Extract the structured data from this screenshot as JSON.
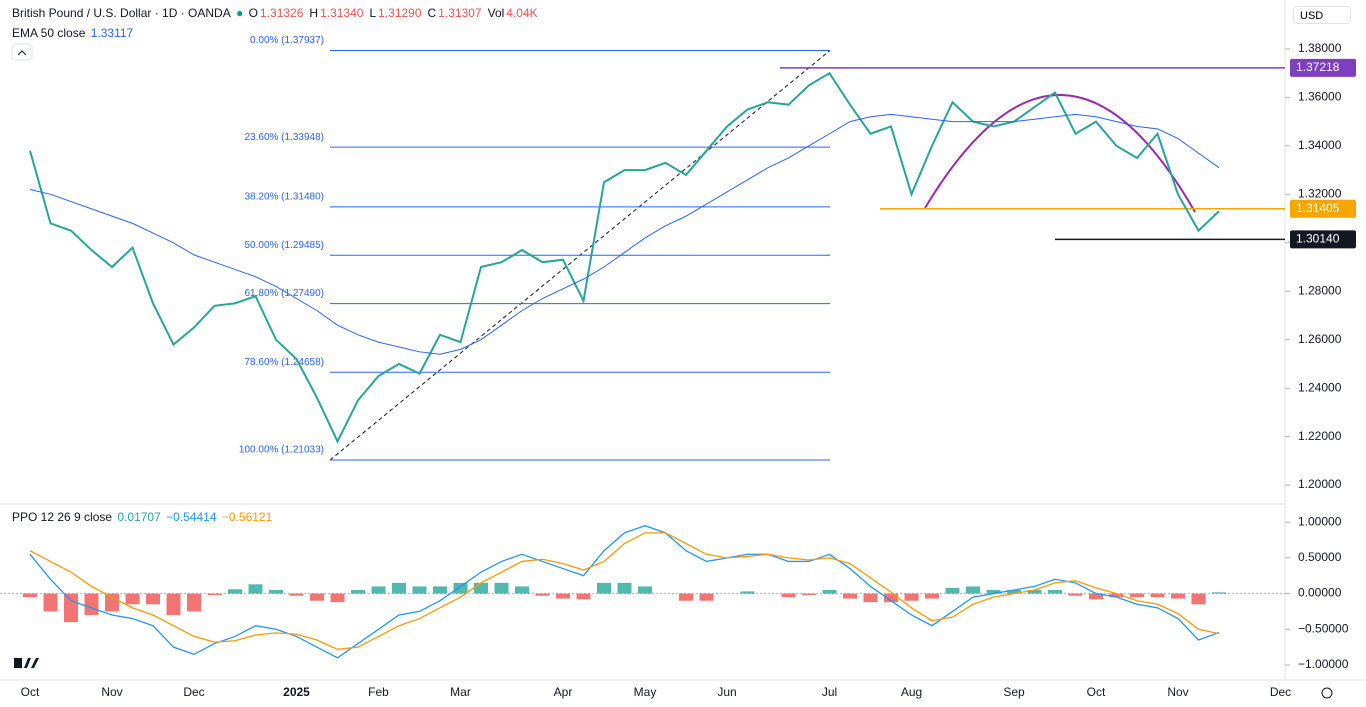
{
  "header": {
    "currency": "USD",
    "ohlc": [
      {
        "key": "O",
        "value": "1.31326"
      },
      {
        "key": "H",
        "value": "1.31340"
      },
      {
        "key": "L",
        "value": "1.31290"
      },
      {
        "key": "C",
        "value": "1.31307"
      },
      {
        "key": "Vol",
        "value": "4.04K"
      }
    ]
  },
  "chart_data": [
    {
      "type": "line",
      "title": "British Pound / U.S. Dollar · 1D · OANDA",
      "categories": [
        "Oct",
        null,
        null,
        null,
        "Nov",
        null,
        null,
        null,
        "Dec",
        null,
        null,
        null,
        null,
        "2025",
        null,
        null,
        null,
        "Feb",
        null,
        null,
        null,
        "Mar",
        null,
        null,
        null,
        null,
        "Apr",
        null,
        null,
        null,
        "May",
        null,
        null,
        null,
        "Jun",
        null,
        null,
        null,
        null,
        "Jul",
        null,
        null,
        null,
        "Aug",
        null,
        null,
        null,
        null,
        "Sep",
        null,
        null,
        null,
        "Oct",
        null,
        null,
        null,
        "Nov",
        null,
        null,
        null,
        null,
        "Dec"
      ],
      "series": [
        {
          "color": "#26a69a",
          "values": [
            1.338,
            1.308,
            1.305,
            1.297,
            1.29,
            1.298,
            1.275,
            1.258,
            1.265,
            1.274,
            1.275,
            1.278,
            1.26,
            1.252,
            1.236,
            1.218,
            1.235,
            1.245,
            1.25,
            1.246,
            1.262,
            1.259,
            1.29,
            1.292,
            1.297,
            1.292,
            1.293,
            1.276,
            1.325,
            1.33,
            1.33,
            1.333,
            1.328,
            1.338,
            1.348,
            1.355,
            1.358,
            1.357,
            1.365,
            1.37,
            1.357,
            1.345,
            1.348,
            1.32,
            1.34,
            1.358,
            1.35,
            1.348,
            1.35,
            1.356,
            1.362,
            1.345,
            1.35,
            1.34,
            1.335,
            1.345,
            1.32,
            1.305,
            1.313,
            null,
            null,
            null
          ]
        },
        {
          "name": "EMA 50 close",
          "legend_value": "1.33117",
          "color": "#2962ff",
          "values": [
            1.322,
            1.32,
            1.317,
            1.314,
            1.311,
            1.308,
            1.304,
            1.3,
            1.295,
            1.292,
            1.289,
            1.286,
            1.282,
            1.277,
            1.272,
            1.266,
            1.262,
            1.259,
            1.257,
            1.255,
            1.254,
            1.256,
            1.26,
            1.266,
            1.272,
            1.277,
            1.281,
            1.285,
            1.29,
            1.296,
            1.302,
            1.307,
            1.311,
            1.316,
            1.321,
            1.326,
            1.331,
            1.335,
            1.34,
            1.345,
            1.35,
            1.352,
            1.353,
            1.352,
            1.351,
            1.35,
            1.35,
            1.35,
            1.35,
            1.351,
            1.352,
            1.353,
            1.352,
            1.35,
            1.348,
            1.347,
            1.343,
            1.337,
            1.331,
            null,
            null,
            null
          ]
        }
      ],
      "fib_levels": [
        {
          "label": "0.00% (1.37937)",
          "value": 1.37937
        },
        {
          "label": "23.60% (1.33948)",
          "value": 1.33948
        },
        {
          "label": "38.20% (1.31480)",
          "value": 1.3148
        },
        {
          "label": "50.00% (1.29485)",
          "value": 1.29485
        },
        {
          "label": "61.80% (1.27490)",
          "value": 1.2749
        },
        {
          "label": "78.60% (1.24658)",
          "value": 1.24658
        },
        {
          "label": "100.00% (1.21033)",
          "value": 1.21033
        }
      ],
      "levels": [
        {
          "value": 1.37218,
          "label": "1.37218",
          "color": "#7e3fbf"
        },
        {
          "value": 1.31405,
          "label": "1.31405",
          "color": "#f7a600"
        },
        {
          "value": 1.3014,
          "label": "1.30140",
          "color": "#131722"
        }
      ],
      "ylim": [
        1.1926,
        1.4002
      ],
      "yticks": [
        {
          "value": 1.38,
          "label": "1.38000"
        },
        {
          "value": 1.36,
          "label": "1.36000"
        },
        {
          "value": 1.34,
          "label": "1.34000"
        },
        {
          "value": 1.32,
          "label": "1.32000"
        },
        {
          "value": 1.3,
          "label": "1.30000"
        },
        {
          "value": 1.28,
          "label": "1.28000"
        },
        {
          "value": 1.26,
          "label": "1.26000"
        },
        {
          "value": 1.24,
          "label": "1.24000"
        },
        {
          "value": 1.22,
          "label": "1.22000"
        },
        {
          "value": 1.2,
          "label": "1.20000"
        }
      ]
    },
    {
      "type": "ppo",
      "title": "PPO 12 26 9 close",
      "series": [
        {
          "legend_value": "0.01707",
          "color": "#26a69a",
          "negative_color": "#ef5350",
          "values": [
            -0.05,
            -0.25,
            -0.4,
            -0.3,
            -0.25,
            -0.15,
            -0.15,
            -0.3,
            -0.25,
            -0.02,
            0.06,
            0.13,
            0.05,
            -0.03,
            -0.1,
            -0.12,
            0.05,
            0.1,
            0.15,
            0.1,
            0.1,
            0.15,
            0.15,
            0.15,
            0.1,
            -0.03,
            -0.07,
            -0.08,
            0.15,
            0.15,
            0.1,
            0.0,
            -0.1,
            -0.1,
            0.0,
            0.03,
            0.0,
            -0.05,
            -0.02,
            0.05,
            -0.07,
            -0.12,
            -0.12,
            -0.1,
            -0.07,
            0.08,
            0.1,
            0.05,
            0.05,
            0.05,
            0.05,
            -0.03,
            -0.08,
            -0.05,
            -0.05,
            -0.05,
            -0.07,
            -0.15,
            0.01707,
            null,
            null,
            null
          ]
        },
        {
          "legend_value": "−0.54414",
          "color": "#2196f3",
          "values": [
            0.55,
            0.2,
            -0.1,
            -0.2,
            -0.3,
            -0.35,
            -0.45,
            -0.75,
            -0.85,
            -0.7,
            -0.6,
            -0.45,
            -0.5,
            -0.6,
            -0.75,
            -0.9,
            -0.7,
            -0.5,
            -0.3,
            -0.25,
            -0.1,
            0.1,
            0.3,
            0.45,
            0.55,
            0.45,
            0.35,
            0.25,
            0.6,
            0.85,
            0.95,
            0.85,
            0.6,
            0.45,
            0.5,
            0.55,
            0.55,
            0.45,
            0.45,
            0.55,
            0.35,
            0.1,
            -0.1,
            -0.3,
            -0.45,
            -0.25,
            -0.05,
            0.0,
            0.05,
            0.1,
            0.2,
            0.15,
            0.0,
            -0.05,
            -0.15,
            -0.2,
            -0.35,
            -0.65,
            -0.54414,
            null,
            null,
            null
          ]
        },
        {
          "legend_value": "−0.56121",
          "color": "#ff9800",
          "values": [
            0.6,
            0.45,
            0.3,
            0.1,
            -0.05,
            -0.2,
            -0.3,
            -0.45,
            -0.6,
            -0.68,
            -0.66,
            -0.58,
            -0.55,
            -0.57,
            -0.65,
            -0.78,
            -0.75,
            -0.6,
            -0.45,
            -0.35,
            -0.2,
            -0.05,
            0.15,
            0.3,
            0.45,
            0.48,
            0.42,
            0.33,
            0.45,
            0.7,
            0.85,
            0.85,
            0.7,
            0.55,
            0.5,
            0.52,
            0.55,
            0.5,
            0.47,
            0.5,
            0.42,
            0.22,
            0.02,
            -0.2,
            -0.38,
            -0.33,
            -0.15,
            -0.05,
            0.0,
            0.05,
            0.15,
            0.18,
            0.08,
            0.0,
            -0.1,
            -0.15,
            -0.28,
            -0.5,
            -0.56121,
            null,
            null,
            null
          ]
        }
      ],
      "ylim": [
        -1.21,
        1.24
      ],
      "yticks": [
        {
          "value": 1,
          "label": "1.00000"
        },
        {
          "value": 0.5,
          "label": "0.50000"
        },
        {
          "value": 0,
          "label": "0.00000"
        },
        {
          "value": -0.5,
          "label": "−0.50000"
        },
        {
          "value": -1,
          "label": "−1.00000"
        }
      ]
    }
  ]
}
